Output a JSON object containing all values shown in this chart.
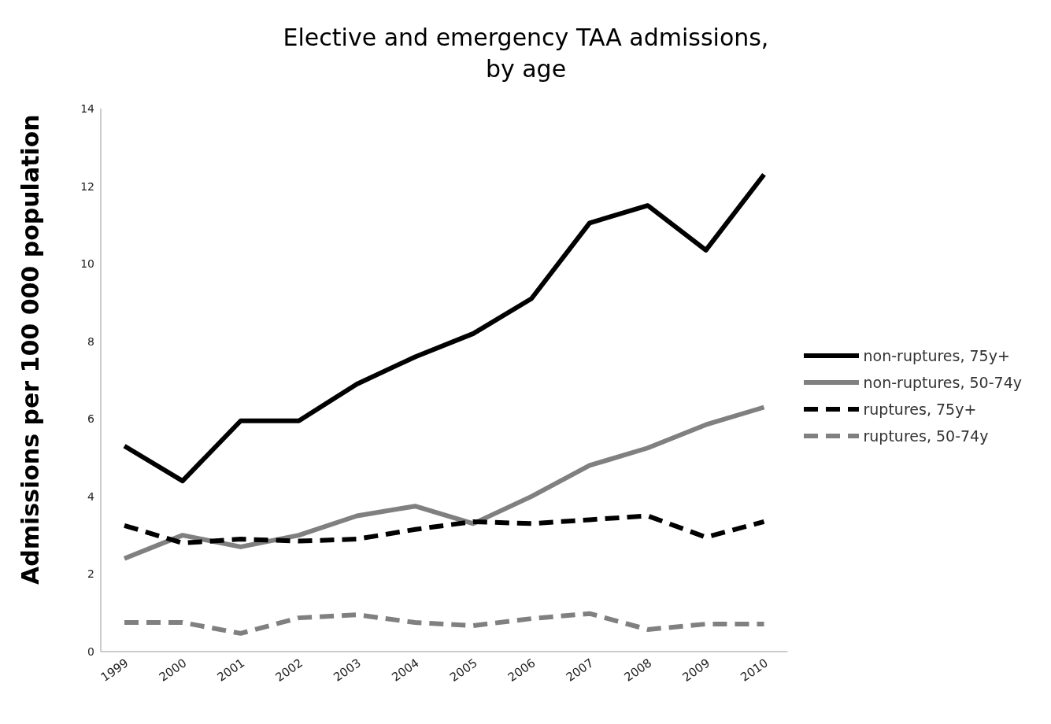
{
  "chart_data": {
    "type": "line",
    "title": "Elective and emergency TAA admissions,\nby age",
    "ylabel": "Admissions per 100 000 population",
    "categories": [
      "1999",
      "2000",
      "2001",
      "2002",
      "2003",
      "2004",
      "2005",
      "2006",
      "2007",
      "2008",
      "2009",
      "2010"
    ],
    "series": [
      {
        "name": "non-ruptures, 75y+",
        "color": "#000000",
        "line_style": "solid",
        "values": [
          5.3,
          4.4,
          5.95,
          5.95,
          6.9,
          7.6,
          8.2,
          9.1,
          11.05,
          11.5,
          10.35,
          12.3
        ]
      },
      {
        "name": "non-ruptures, 50-74y",
        "color": "#808080",
        "line_style": "solid",
        "values": [
          2.4,
          3.0,
          2.7,
          3.0,
          3.5,
          3.75,
          3.3,
          4.0,
          4.8,
          5.25,
          5.85,
          6.3
        ]
      },
      {
        "name": "ruptures, 75y+",
        "color": "#000000",
        "line_style": "dashed",
        "values": [
          3.25,
          2.8,
          2.9,
          2.85,
          2.9,
          3.15,
          3.35,
          3.3,
          3.4,
          3.5,
          2.95,
          3.35
        ]
      },
      {
        "name": "ruptures, 50-74y",
        "color": "#808080",
        "line_style": "dashed",
        "values": [
          0.75,
          0.75,
          0.47,
          0.87,
          0.95,
          0.75,
          0.67,
          0.85,
          0.98,
          0.57,
          0.71,
          0.71
        ]
      }
    ],
    "ylim": [
      0,
      14
    ],
    "yticks": [
      0,
      2,
      4,
      6,
      8,
      10,
      12,
      14
    ],
    "grid": false,
    "legend": "right",
    "marker": "none"
  }
}
